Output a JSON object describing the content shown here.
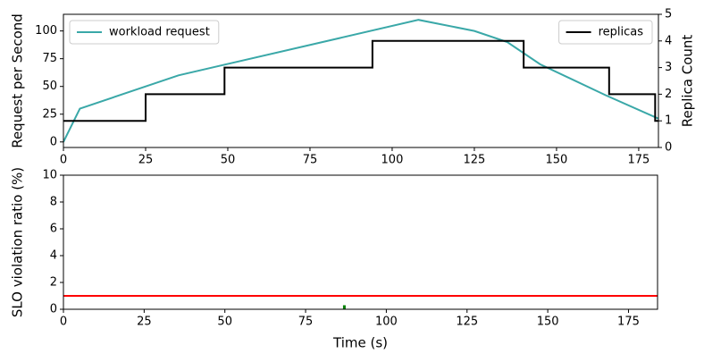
{
  "chart_data": [
    {
      "type": "line",
      "ylabel": "Request per Second",
      "y2label": "Replica Count",
      "xlim": [
        0,
        181
      ],
      "xticks": [
        0,
        25,
        50,
        75,
        100,
        125,
        150,
        175
      ],
      "ylim": [
        -5,
        115
      ],
      "yticks": [
        0,
        25,
        50,
        75,
        100
      ],
      "y2lim": [
        0,
        5
      ],
      "y2ticks": [
        0,
        1,
        2,
        3,
        4,
        5
      ],
      "series": [
        {
          "name": "workload request",
          "color": "#3aa8a8",
          "legend": "upper left",
          "x": [
            0,
            5,
            35,
            108,
            125,
            135,
            145,
            165,
            181
          ],
          "values": [
            0,
            30,
            60,
            110,
            100,
            90,
            70,
            42,
            21
          ]
        },
        {
          "name": "replicas",
          "color": "#000000",
          "legend": "upper right",
          "axis": "y2",
          "step": "post",
          "x": [
            0,
            25,
            49,
            94,
            140,
            166,
            180,
            181
          ],
          "values": [
            1,
            2,
            3,
            4,
            3,
            2,
            1,
            1
          ]
        }
      ]
    },
    {
      "type": "line",
      "ylabel": "SLO violation ratio (%)",
      "xlabel": "Time (s)",
      "xlim": [
        0,
        184
      ],
      "xticks": [
        0,
        25,
        50,
        75,
        100,
        125,
        150,
        175
      ],
      "ylim": [
        0,
        10
      ],
      "yticks": [
        0,
        2,
        4,
        6,
        8,
        10
      ],
      "series": [
        {
          "color": "#ff0000",
          "x": [
            0,
            184
          ],
          "values": [
            1,
            1
          ]
        },
        {
          "type": "bar",
          "color": "#008000",
          "x": [
            87
          ],
          "values": [
            0.3
          ]
        }
      ]
    }
  ]
}
